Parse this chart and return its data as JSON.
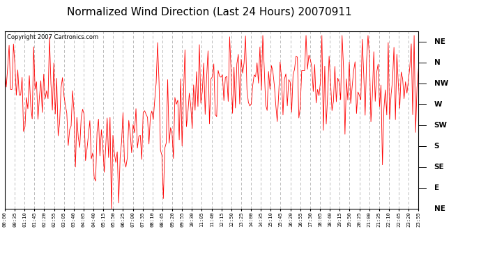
{
  "title": "Normalized Wind Direction (Last 24 Hours) 20070911",
  "copyright": "Copyright 2007 Cartronics.com",
  "line_color": "red",
  "bg_color": "white",
  "plot_bg_color": "white",
  "grid_color": "#bbbbbb",
  "grid_style": "--",
  "y_labels": [
    "NE",
    "N",
    "NW",
    "W",
    "SW",
    "S",
    "SE",
    "E",
    "NE"
  ],
  "y_ticks": [
    9,
    8,
    7,
    6,
    5,
    4,
    3,
    2,
    1
  ],
  "x_labels": [
    "00:00",
    "00:35",
    "01:10",
    "01:45",
    "02:20",
    "02:55",
    "03:05",
    "03:40",
    "04:05",
    "04:40",
    "05:15",
    "05:50",
    "06:25",
    "07:00",
    "07:35",
    "08:10",
    "08:45",
    "09:20",
    "09:55",
    "10:30",
    "11:05",
    "11:40",
    "12:15",
    "12:50",
    "13:25",
    "14:00",
    "14:35",
    "15:10",
    "15:45",
    "16:20",
    "16:55",
    "17:30",
    "18:05",
    "18:40",
    "19:15",
    "19:50",
    "20:25",
    "21:00",
    "21:35",
    "22:10",
    "22:45",
    "23:20",
    "23:55"
  ],
  "seed": 42,
  "n_points": 288,
  "ylim_min": 1,
  "ylim_max": 9.5,
  "title_fontsize": 11
}
